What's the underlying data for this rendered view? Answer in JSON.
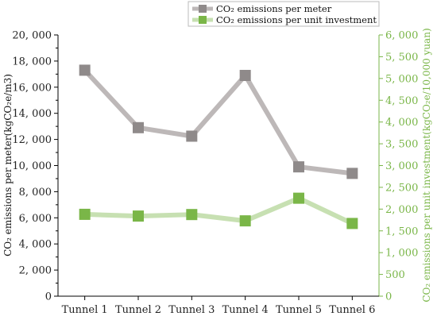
{
  "chart_data": {
    "type": "line",
    "categories": [
      "Tunnel 1",
      "Tunnel 2",
      "Tunnel 3",
      "Tunnel 4",
      "Tunnel 5",
      "Tunnel 6"
    ],
    "series": [
      {
        "name": "CO₂ emissions per meter",
        "axis": "left",
        "color": "#8f8a8a",
        "line_color": "#bdb8b8",
        "values": [
          17300,
          12900,
          12250,
          16900,
          9900,
          9400
        ]
      },
      {
        "name": "CO₂ emissions per unit investment",
        "axis": "right",
        "color": "#7ab648",
        "line_color": "#c7e0b2",
        "values": [
          1880,
          1840,
          1875,
          1730,
          2250,
          1670
        ]
      }
    ],
    "ylabel": "CO₂ emissions per meter(kgCO₂e/m3)",
    "y2label": "CO₂ emissions per unit investment(kgCO₂e/10,000 yuan)",
    "ylim": [
      0,
      20000
    ],
    "y2lim": [
      0,
      6000
    ],
    "yticks": [
      "0",
      "2, 000",
      "4, 000",
      "6, 000",
      "8, 000",
      "10, 000",
      "12, 000",
      "14, 000",
      "16, 000",
      "18, 000",
      "20, 000"
    ],
    "y2ticks": [
      "0",
      "500",
      "1, 000",
      "1, 500",
      "2, 000",
      "2, 500",
      "3, 000",
      "3, 500",
      "4, 000",
      "4, 500",
      "5, 000",
      "5, 500",
      "6, 000"
    ],
    "legend_position": "top-right",
    "grid": false
  }
}
